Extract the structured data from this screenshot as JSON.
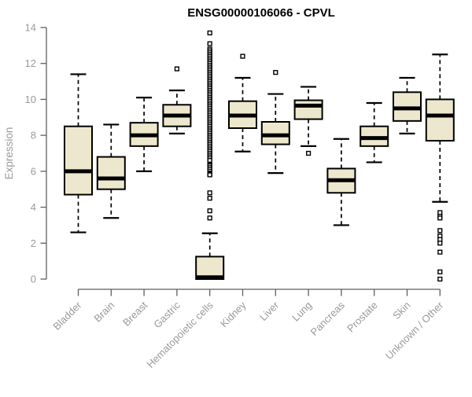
{
  "page": {
    "background": "#ffffff"
  },
  "chart_data": {
    "type": "boxplot",
    "title": "ENSG00000106066 - CPVL",
    "ylabel": "Expression",
    "xlabel": "",
    "ylim": [
      0,
      14
    ],
    "yticks": [
      0,
      2,
      4,
      6,
      8,
      10,
      12,
      14
    ],
    "grid": false,
    "legend": false,
    "categories": [
      "Bladder",
      "Brain",
      "Breast",
      "Gastric",
      "Hematopoietic cells",
      "Kidney",
      "Liver",
      "Lung",
      "Pancreas",
      "Prostate",
      "Skin",
      "Unknown / Other"
    ],
    "boxes": [
      {
        "category": "Bladder",
        "whisker_low": 2.6,
        "q1": 4.7,
        "median": 6.0,
        "q3": 8.5,
        "whisker_high": 11.4,
        "outliers": []
      },
      {
        "category": "Brain",
        "whisker_low": 3.4,
        "q1": 5.0,
        "median": 5.6,
        "q3": 6.8,
        "whisker_high": 8.6,
        "outliers": []
      },
      {
        "category": "Breast",
        "whisker_low": 6.0,
        "q1": 7.4,
        "median": 8.0,
        "q3": 8.7,
        "whisker_high": 10.1,
        "outliers": []
      },
      {
        "category": "Gastric",
        "whisker_low": 8.1,
        "q1": 8.5,
        "median": 9.1,
        "q3": 9.7,
        "whisker_high": 10.5,
        "outliers": [
          11.7
        ]
      },
      {
        "category": "Hematopoietic cells",
        "whisker_low": 0.0,
        "q1": 0.0,
        "median": 0.1,
        "q3": 1.25,
        "whisker_high": 2.55,
        "outliers": [
          13.7,
          13.1,
          12.8,
          12.7,
          12.6,
          12.5,
          12.4,
          12.3,
          12.2,
          12.1,
          12.0,
          11.9,
          11.8,
          11.7,
          11.6,
          11.5,
          11.4,
          11.3,
          11.2,
          11.1,
          11.0,
          10.9,
          10.8,
          10.7,
          10.6,
          10.5,
          10.4,
          10.3,
          10.2,
          10.1,
          10.0,
          9.9,
          9.8,
          9.7,
          9.6,
          9.5,
          9.4,
          9.3,
          9.2,
          9.1,
          9.0,
          8.9,
          8.8,
          8.7,
          8.6,
          8.5,
          8.4,
          8.3,
          8.2,
          8.1,
          8.0,
          7.9,
          7.8,
          7.7,
          7.6,
          7.5,
          7.4,
          7.3,
          7.2,
          7.1,
          7.0,
          6.9,
          6.8,
          6.7,
          6.6,
          6.4,
          6.35,
          6.3,
          6.2,
          6.1,
          6.0,
          5.9,
          5.85,
          5.8,
          4.8,
          4.5,
          3.8,
          3.4
        ]
      },
      {
        "category": "Kidney",
        "whisker_low": 7.1,
        "q1": 8.4,
        "median": 9.1,
        "q3": 9.9,
        "whisker_high": 11.2,
        "outliers": [
          12.4
        ]
      },
      {
        "category": "Liver",
        "whisker_low": 5.9,
        "q1": 7.5,
        "median": 8.0,
        "q3": 8.75,
        "whisker_high": 10.3,
        "outliers": [
          11.5
        ]
      },
      {
        "category": "Lung",
        "whisker_low": 7.4,
        "q1": 8.9,
        "median": 9.65,
        "q3": 9.95,
        "whisker_high": 10.7,
        "outliers": [
          7.0
        ]
      },
      {
        "category": "Pancreas",
        "whisker_low": 3.0,
        "q1": 4.8,
        "median": 5.5,
        "q3": 6.15,
        "whisker_high": 7.8,
        "outliers": []
      },
      {
        "category": "Prostate",
        "whisker_low": 6.5,
        "q1": 7.4,
        "median": 7.85,
        "q3": 8.5,
        "whisker_high": 9.8,
        "outliers": []
      },
      {
        "category": "Skin",
        "whisker_low": 8.1,
        "q1": 8.8,
        "median": 9.5,
        "q3": 10.4,
        "whisker_high": 11.2,
        "outliers": []
      },
      {
        "category": "Unknown / Other",
        "whisker_low": 4.3,
        "q1": 7.7,
        "median": 9.1,
        "q3": 10.0,
        "whisker_high": 12.5,
        "outliers": [
          3.7,
          3.5,
          3.4,
          2.7,
          2.4,
          2.2,
          2.0,
          1.5,
          0.4,
          0.0
        ]
      }
    ],
    "colors": {
      "box_fill": "#ede8cd",
      "box_stroke": "#000000",
      "median": "#000000",
      "axis": "#5f5f5f",
      "tick_labels": "#9a9a9a",
      "title": "#000000",
      "background": "#ffffff"
    }
  }
}
